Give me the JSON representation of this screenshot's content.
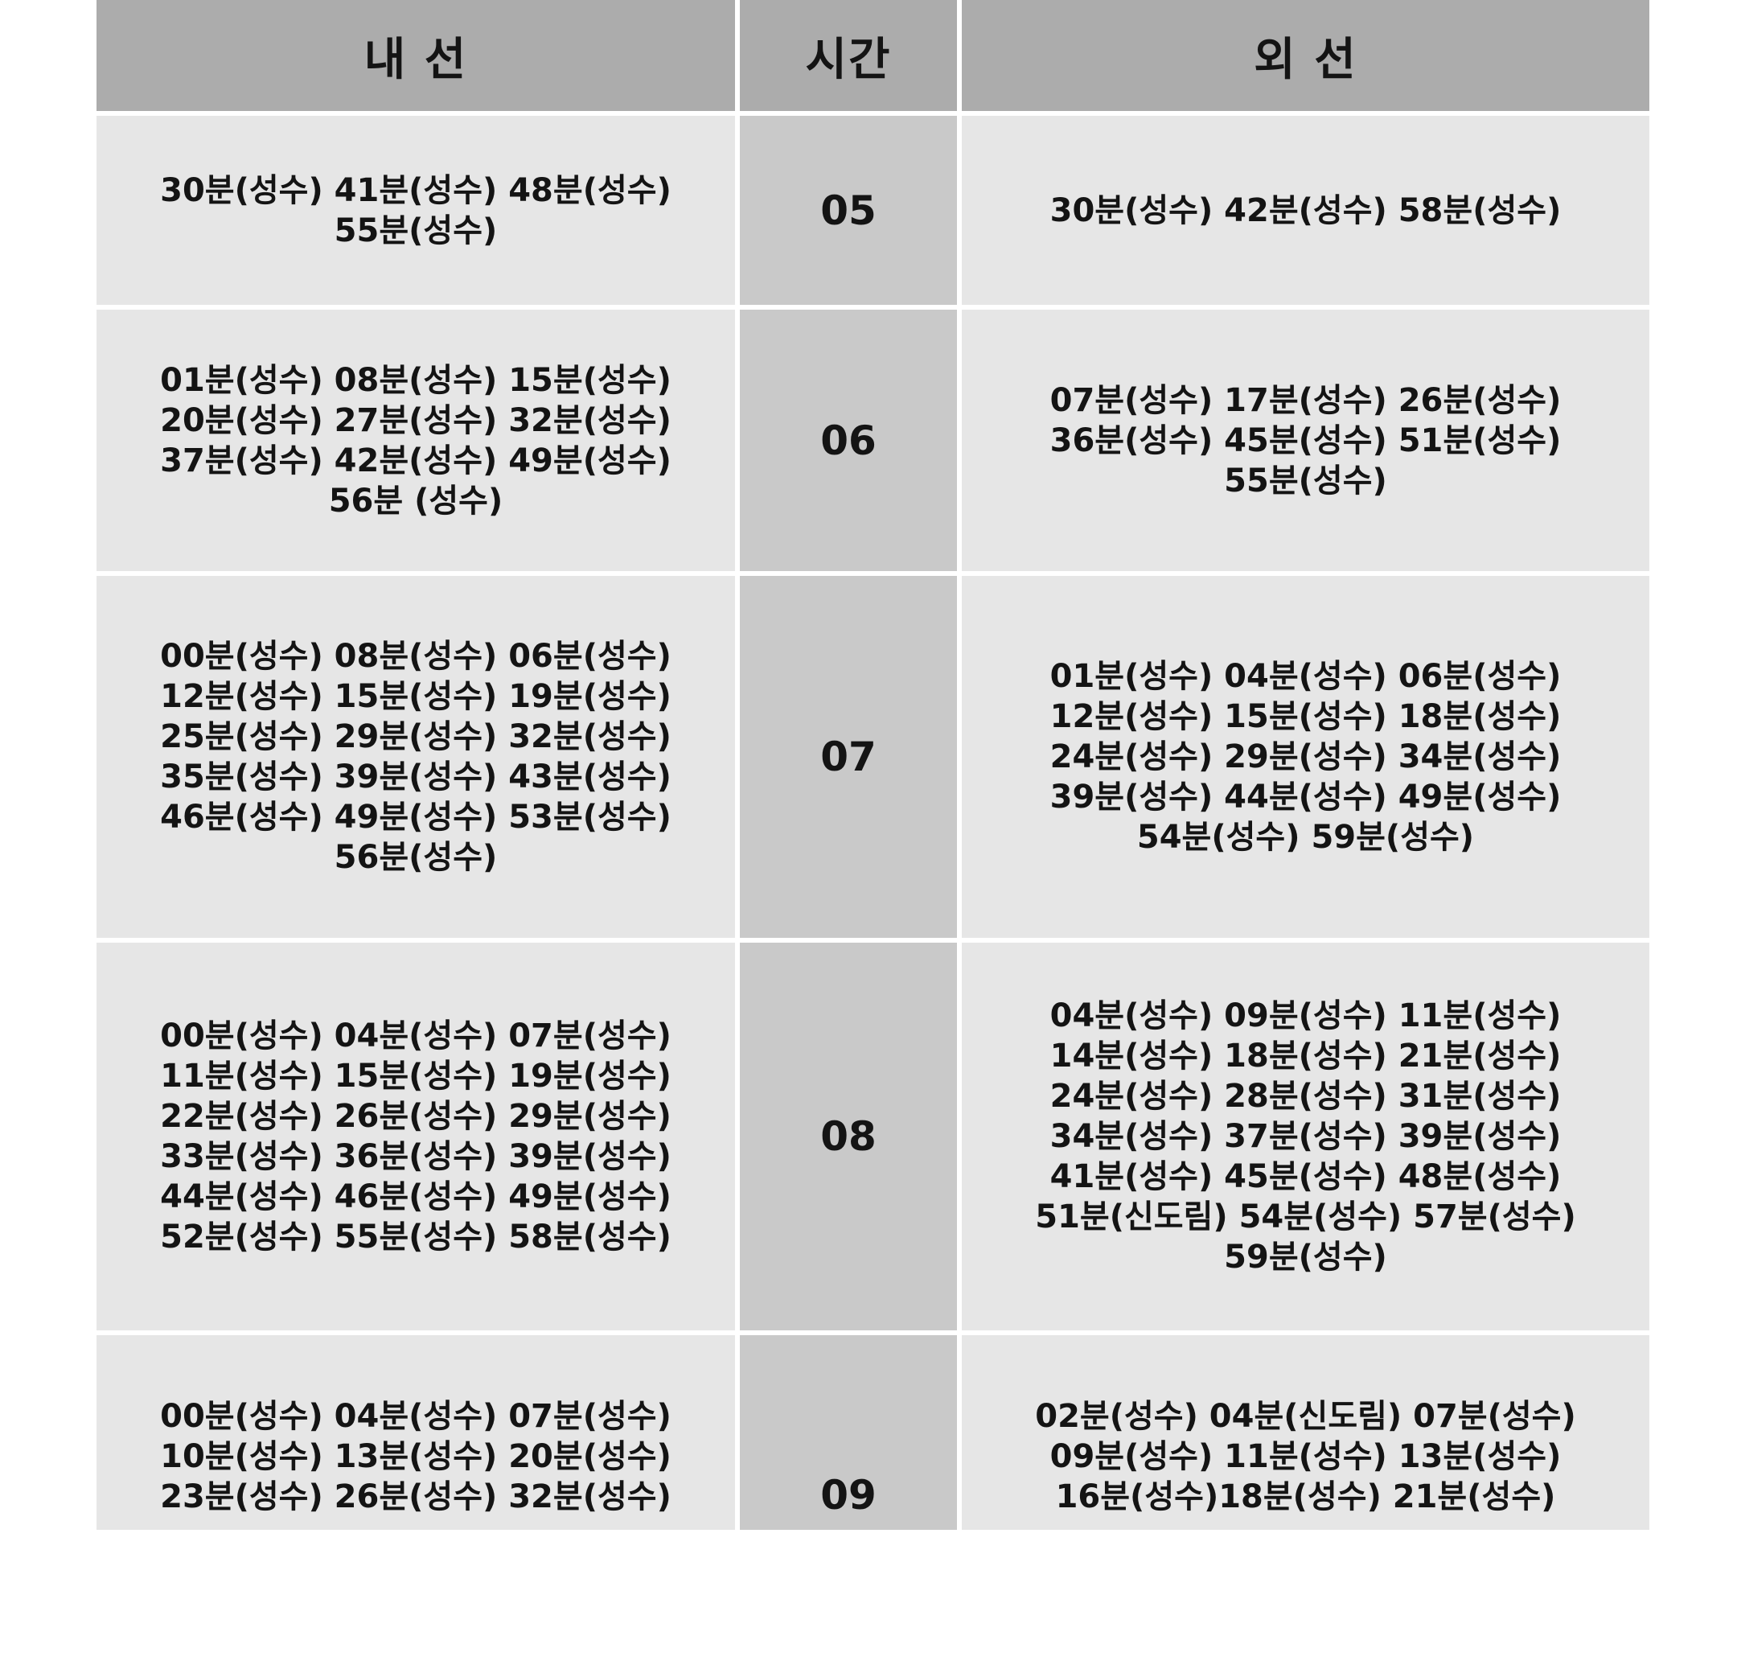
{
  "header": {
    "inner": "내 선",
    "time": "시간",
    "outer": "외 선"
  },
  "rows": [
    {
      "hour": "05",
      "inner": "30분(성수) 41분(성수) 48분(성수)\n55분(성수)",
      "outer": "30분(성수) 42분(성수) 58분(성수)"
    },
    {
      "hour": "06",
      "inner": "01분(성수) 08분(성수) 15분(성수)\n20분(성수) 27분(성수) 32분(성수)\n37분(성수) 42분(성수) 49분(성수)\n56분 (성수)",
      "outer": "07분(성수) 17분(성수) 26분(성수)\n36분(성수) 45분(성수) 51분(성수)\n55분(성수)"
    },
    {
      "hour": "07",
      "inner": "00분(성수) 08분(성수) 06분(성수)\n12분(성수) 15분(성수) 19분(성수)\n25분(성수) 29분(성수) 32분(성수)\n35분(성수) 39분(성수) 43분(성수)\n46분(성수) 49분(성수) 53분(성수)\n56분(성수)",
      "outer": "01분(성수) 04분(성수) 06분(성수)\n12분(성수) 15분(성수) 18분(성수)\n24분(성수) 29분(성수) 34분(성수)\n39분(성수) 44분(성수) 49분(성수)\n54분(성수) 59분(성수)"
    },
    {
      "hour": "08",
      "inner": "00분(성수) 04분(성수) 07분(성수)\n11분(성수) 15분(성수) 19분(성수)\n22분(성수) 26분(성수) 29분(성수)\n33분(성수) 36분(성수) 39분(성수)\n44분(성수) 46분(성수) 49분(성수)\n52분(성수) 55분(성수) 58분(성수)",
      "outer": "04분(성수) 09분(성수) 11분(성수)\n14분(성수) 18분(성수) 21분(성수)\n24분(성수) 28분(성수) 31분(성수)\n34분(성수) 37분(성수) 39분(성수)\n41분(성수) 45분(성수) 48분(성수)\n51분(신도림) 54분(성수) 57분(성수)\n59분(성수)"
    },
    {
      "hour": "09",
      "inner": "00분(성수) 04분(성수) 07분(성수)\n10분(성수) 13분(성수) 20분(성수)\n23분(성수) 26분(성수) 32분(성수)",
      "outer": "02분(성수) 04분(신도림) 07분(성수)\n09분(성수) 11분(성수) 13분(성수)\n16분(성수)18분(성수) 21분(성수)"
    }
  ],
  "colors": {
    "header_bg": "#acacac",
    "hour_bg": "#c9c9c9",
    "cell_bg": "#e6e6e6",
    "text": "#141414"
  }
}
